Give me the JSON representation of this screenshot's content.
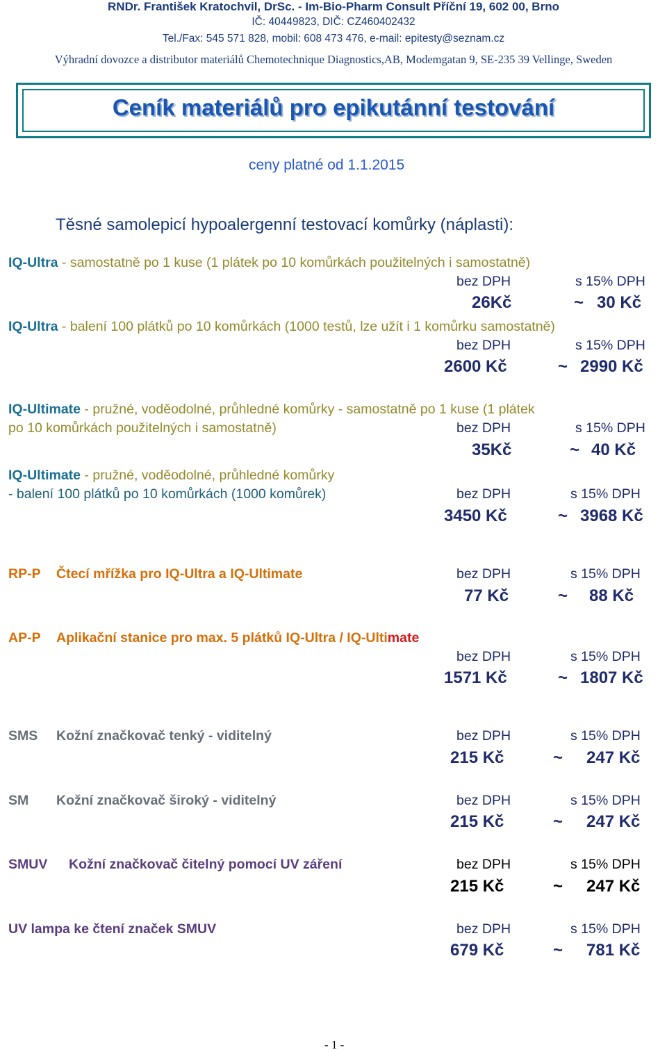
{
  "header": {
    "line1": "RNDr. František Kratochvil, DrSc.   -   Im-Bio-Pharm Consult      Příční 19, 602 00, Brno",
    "line2": "IČ: 40449823, DIČ: CZ460402432",
    "line3": "Tel./Fax: 545 571 828,   mobil: 608 473 476,   e-mail:  epitesty@seznam.cz",
    "line4": "Výhradní dovozce a distributor materiálů Chemotechnique Diagnostics,AB, Modemgatan 9, SE-235 39 Vellinge, Sweden"
  },
  "title": "Ceník materiálů pro epikutánní testování",
  "validity": "ceny platné od 1.1.2015",
  "section_title": "Těsné samolepicí hypoalergenní testovací komůrky (náplasti):",
  "labels": {
    "net": "bez DPH",
    "gross": "s 15% DPH",
    "approx": "~"
  },
  "items": [
    {
      "code": "IQ-Ultra",
      "desc": " - samostatně po 1 kuse (1 plátek po 10 komůrkách použitelných i samostatně)",
      "net": "26Kč",
      "gross": "30 Kč"
    },
    {
      "code": "IQ-Ultra",
      "desc": " - balení 100 plátků po 10 komůrkách (1000 testů, lze užít i 1 komůrku samostatně)",
      "net": "2600 Kč",
      "gross": "2990 Kč"
    },
    {
      "code": "IQ-Ultimate",
      "desc_a": " - pružné, voděodolné, průhledné komůrky  -  samostatně po 1 kuse (1 plátek",
      "desc_b": "po 10 komůrkách použitelných i samostatně)",
      "net": "35Kč",
      "gross": "40 Kč"
    },
    {
      "code": "IQ-Ultimate",
      "desc_a": " - pružné, voděodolné, průhledné komůrky",
      "desc_b": "- balení 100 plátků po 10 komůrkách (1000 komůrek)",
      "net": "3450 Kč",
      "gross": "3968 Kč"
    },
    {
      "code": "RP-P",
      "desc": "Čtecí mřížka pro IQ-Ultra a IQ-Ultimate",
      "net": "77 Kč",
      "gross": "88 Kč"
    },
    {
      "code": "AP-P",
      "desc_a": "Aplikační stanice pro max. 5 plátků IQ-Ultra / IQ-Ulti",
      "desc_b": "mate",
      "net": "1571 Kč",
      "gross": "1807 Kč"
    },
    {
      "code": "SMS",
      "desc": "Kožní značkovač tenký - viditelný",
      "net": "215 Kč",
      "gross": "247 Kč"
    },
    {
      "code": "SM",
      "desc": "Kožní značkovač široký - viditelný",
      "net": "215 Kč",
      "gross": "247 Kč"
    },
    {
      "code": "SMUV",
      "desc": "Kožní značkovač čitelný pomocí UV záření",
      "net": "215 Kč",
      "gross": "247 Kč"
    },
    {
      "code": "",
      "desc": "UV lampa ke čtení značek SMUV",
      "net": "679 Kč",
      "gross": "781 Kč"
    }
  ],
  "page_number": "- 1 -"
}
